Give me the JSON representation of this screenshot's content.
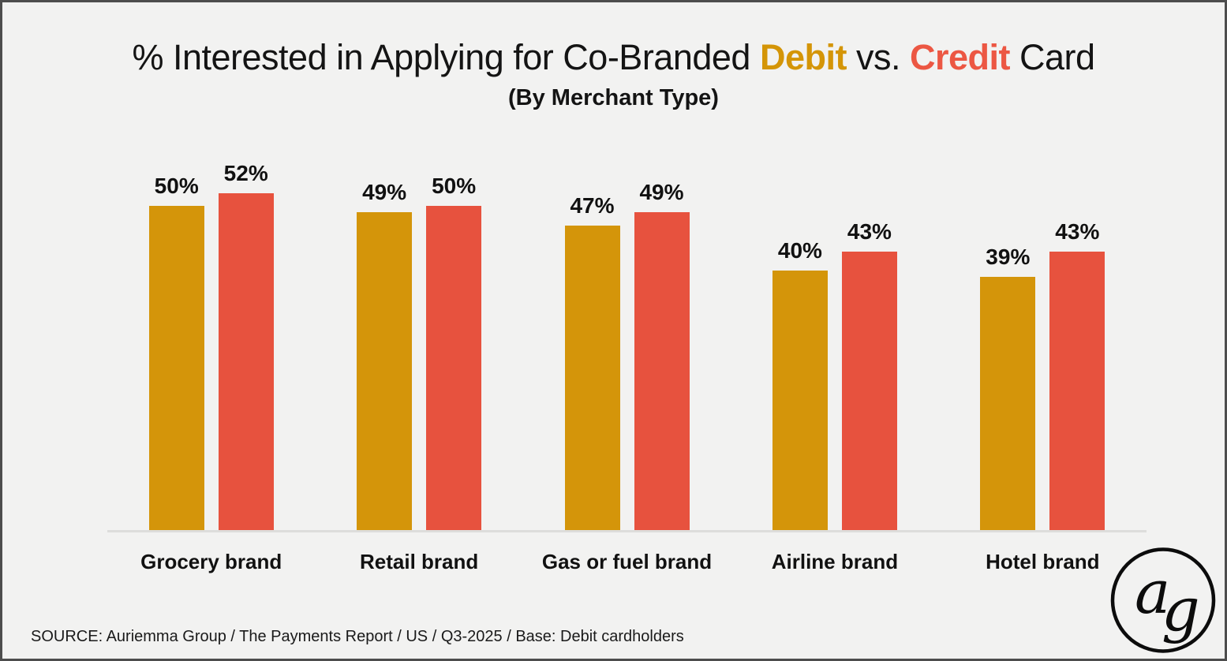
{
  "title": {
    "segments": [
      {
        "text": "% Interested in Applying for Co-Branded "
      },
      {
        "text": "Debit"
      },
      {
        "text": " vs. "
      },
      {
        "text": "Credit"
      },
      {
        "text": " Card"
      }
    ],
    "subtitle": "(By Merchant Type)"
  },
  "chart_data": {
    "type": "bar",
    "title": "% Interested in Applying for Co-Branded Debit vs. Credit Card",
    "subtitle": "(By Merchant Type)",
    "categories": [
      "Grocery brand",
      "Retail brand",
      "Gas or fuel brand",
      "Airline brand",
      "Hotel brand"
    ],
    "series": [
      {
        "name": "Debit",
        "color": "#d4950a",
        "values": [
          50,
          49,
          47,
          40,
          39
        ]
      },
      {
        "name": "Credit",
        "color": "#e7523e",
        "values": [
          52,
          50,
          49,
          43,
          43
        ]
      }
    ],
    "value_suffix": "%",
    "xlabel": "",
    "ylabel": "",
    "ylim": [
      0,
      60
    ],
    "grid": false,
    "legend": "none (series colored in title text)",
    "data_labels": "above bars"
  },
  "source_line": "SOURCE: Auriemma Group / The Payments Report / US / Q3-2025 / Base: Debit cardholders",
  "logo": {
    "letters": [
      "a",
      "g"
    ],
    "shape": "circle-outline"
  },
  "colors": {
    "debit": "#d4950a",
    "credit": "#e7523e",
    "background": "#f2f2f1",
    "border": "#4d4d4d",
    "axis_line": "#dddddb",
    "text": "#141414"
  }
}
